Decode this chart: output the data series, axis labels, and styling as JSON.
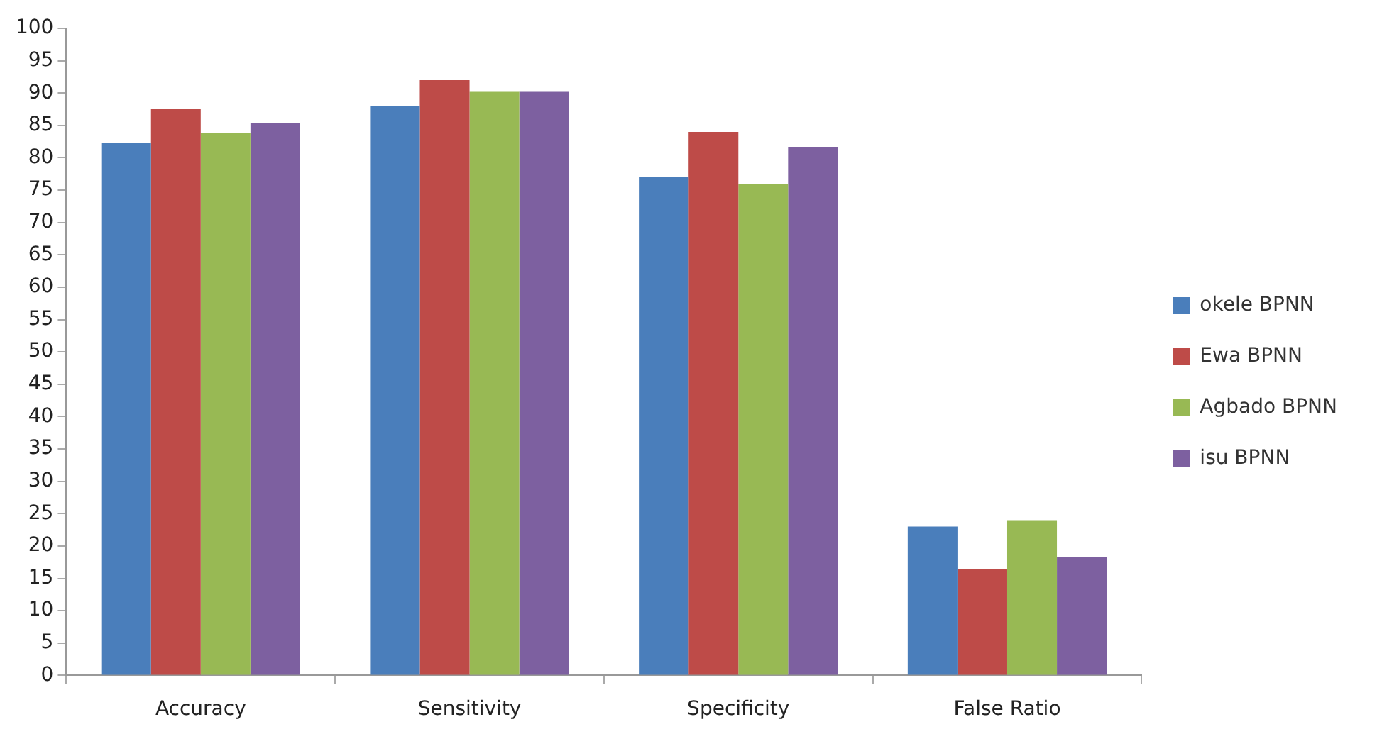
{
  "chart_data": {
    "type": "bar",
    "categories": [
      "Accuracy",
      "Sensitivity",
      "Specificity",
      "False Ratio"
    ],
    "series": [
      {
        "name": "okele BPNN",
        "color": "#4a7ebb",
        "values": [
          82.3,
          88,
          77,
          23
        ]
      },
      {
        "name": "Ewa BPNN",
        "color": "#be4b48",
        "values": [
          87.6,
          92,
          84,
          16.4
        ]
      },
      {
        "name": "Agbado BPNN",
        "color": "#98b954",
        "values": [
          83.8,
          90.2,
          76,
          24
        ]
      },
      {
        "name": "isu BPNN",
        "color": "#7d60a0",
        "values": [
          85.4,
          90.2,
          81.7,
          18.3
        ]
      }
    ],
    "ylim": [
      0,
      100
    ],
    "yticks": [
      0,
      5,
      10,
      15,
      20,
      25,
      30,
      35,
      40,
      45,
      50,
      55,
      60,
      65,
      70,
      75,
      80,
      85,
      90,
      95,
      100
    ],
    "grid": false,
    "legend": "right"
  }
}
